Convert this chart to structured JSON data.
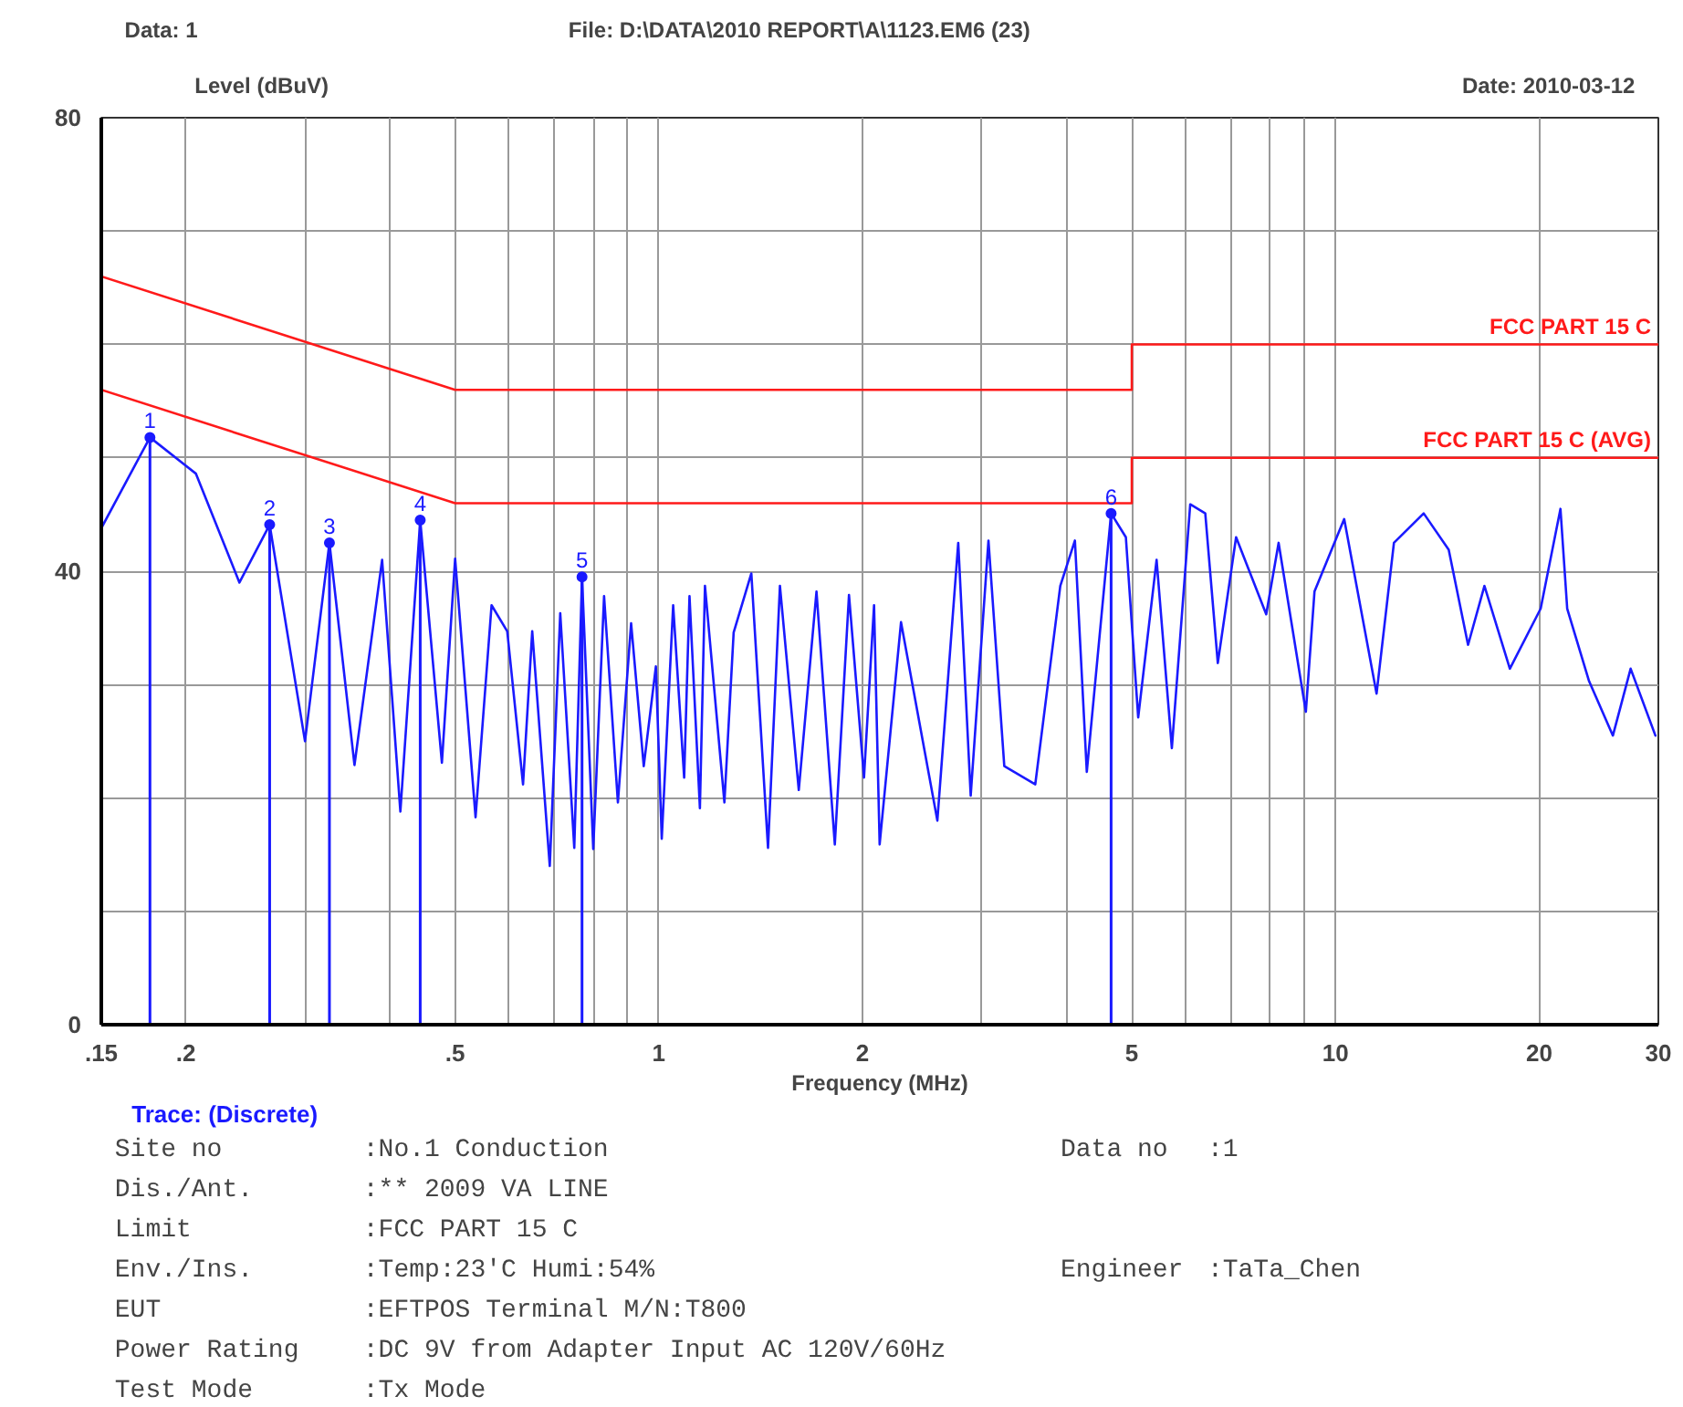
{
  "chart_data": {
    "type": "line",
    "title": "File: D:\\DATA\\2010 REPORT\\A\\1123.EM6  (23)",
    "xlabel": "Frequency (MHz)",
    "ylabel": "Level (dBuV)",
    "annotations": [
      "Data: 1",
      "Date: 2010-03-12",
      "Trace: (Discrete)",
      "Site no",
      ":No.1 Conduction",
      "Data no",
      ":1",
      "Dis./Ant.",
      ":**   2009 VA LINE",
      "Limit",
      ":FCC PART 15 C",
      "Env./Ins.",
      ":Temp:23'C Humi:54%",
      "Engineer",
      ":TaTa_Chen",
      "EUT",
      ":EFTPOS Terminal  M/N:T800",
      "Power Rating",
      ":DC 9V from Adapter Input AC 120V/60Hz",
      "Test Mode",
      ":Tx Mode",
      {
        "text": "1",
        "x": 0.177,
        "y": 51.8
      },
      {
        "text": "2",
        "x": 0.266,
        "y": 44.1
      },
      {
        "text": "3",
        "x": 0.326,
        "y": 42.5
      },
      {
        "text": "4",
        "x": 0.444,
        "y": 44.5
      },
      {
        "text": "5",
        "x": 0.77,
        "y": 39.5
      },
      {
        "text": "6",
        "x": 4.66,
        "y": 45.1
      }
    ],
    "log": "x",
    "grid": true,
    "xlim": [
      0.15,
      30
    ],
    "ylim": [
      0,
      80
    ],
    "xticks": [
      {
        "value": 0.15,
        "label": ".15"
      },
      {
        "value": 0.2,
        "label": ".2"
      },
      {
        "value": 0.3,
        "label": null
      },
      {
        "value": 0.4,
        "label": null
      },
      {
        "value": 0.5,
        "label": ".5"
      },
      {
        "value": 0.6,
        "label": null
      },
      {
        "value": 0.7,
        "label": null
      },
      {
        "value": 0.8,
        "label": null
      },
      {
        "value": 0.9,
        "label": null
      },
      1,
      2,
      {
        "value": 3,
        "label": null
      },
      {
        "value": 4,
        "label": null
      },
      5,
      {
        "value": 6,
        "label": null
      },
      {
        "value": 7,
        "label": null
      },
      {
        "value": 8,
        "label": null
      },
      {
        "value": 9,
        "label": null
      },
      10,
      20,
      30
    ],
    "yticks": [
      0,
      {
        "value": 10,
        "label": null
      },
      {
        "value": 20,
        "label": null
      },
      {
        "value": 30,
        "label": null
      },
      40,
      {
        "value": 50,
        "label": null
      },
      {
        "value": 60,
        "label": null
      },
      {
        "value": 70,
        "label": null
      },
      80
    ],
    "series": [
      {
        "color": "#1a1aff",
        "x": [
          0.15,
          0.177,
          0.207,
          0.24,
          0.266,
          0.3,
          0.326,
          0.355,
          0.39,
          0.415,
          0.444,
          0.478,
          0.5,
          0.536,
          0.566,
          0.597,
          0.63,
          0.65,
          0.69,
          0.715,
          0.75,
          0.77,
          0.8,
          0.83,
          0.87,
          0.91,
          0.95,
          0.99,
          1.01,
          1.05,
          1.09,
          1.11,
          1.15,
          1.17,
          1.25,
          1.29,
          1.37,
          1.45,
          1.51,
          1.61,
          1.71,
          1.82,
          1.91,
          2.01,
          2.08,
          2.12,
          2.28,
          2.58,
          2.77,
          2.89,
          3.07,
          3.24,
          3.6,
          3.92,
          4.12,
          4.29,
          4.66,
          4.9,
          5.11,
          5.44,
          5.73,
          6.1,
          6.42,
          6.7,
          7.13,
          7.9,
          8.24,
          9.04,
          9.31,
          10.3,
          11.5,
          12.2,
          13.5,
          14.7,
          15.7,
          16.6,
          18.1,
          20.1,
          21.5,
          22.0,
          23.7,
          25.7,
          27.3,
          29.7
        ],
        "values": [
          43.8,
          51.8,
          48.6,
          39.0,
          44.1,
          25.0,
          42.5,
          22.9,
          41.0,
          18.8,
          44.5,
          23.1,
          41.1,
          18.3,
          37.0,
          34.7,
          21.2,
          34.7,
          14.0,
          36.3,
          15.6,
          39.5,
          15.5,
          37.8,
          19.6,
          35.4,
          22.8,
          31.6,
          16.4,
          37.0,
          21.8,
          37.8,
          19.1,
          38.7,
          19.6,
          34.6,
          39.8,
          15.6,
          38.7,
          20.7,
          38.2,
          15.9,
          37.9,
          21.8,
          37.0,
          15.9,
          35.5,
          18.0,
          42.5,
          20.2,
          42.7,
          22.8,
          21.2,
          38.7,
          42.7,
          22.3,
          45.1,
          43.0,
          27.1,
          41.0,
          24.4,
          45.9,
          45.1,
          31.9,
          43.0,
          36.2,
          42.5,
          27.6,
          38.2,
          44.6,
          29.2,
          42.5,
          45.1,
          41.9,
          33.5,
          38.7,
          31.4,
          36.7,
          45.5,
          36.7,
          30.3,
          25.5,
          31.4,
          25.5
        ]
      },
      {
        "type": "line",
        "name": "FCC PART 15 C",
        "color": "#ff1a1a",
        "x": [
          0.15,
          0.5,
          5,
          5,
          30
        ],
        "values": [
          66,
          56,
          56,
          60,
          60
        ]
      },
      {
        "type": "line",
        "name": "FCC PART 15 C (AVG)",
        "color": "#ff1a1a",
        "x": [
          0.15,
          0.5,
          5,
          5,
          30
        ],
        "values": [
          56,
          46,
          46,
          50,
          50
        ]
      },
      {
        "type": "lollipop",
        "color": "#1a1aff",
        "x": [
          0.177,
          0.266,
          0.326,
          0.444,
          0.77,
          4.66
        ],
        "values": [
          51.8,
          44.1,
          42.5,
          44.5,
          39.5,
          45.1
        ],
        "marker": "circle"
      }
    ]
  }
}
